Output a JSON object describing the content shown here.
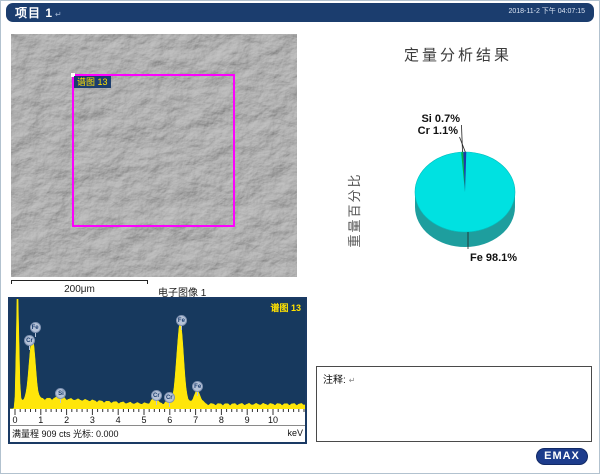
{
  "header": {
    "title": "项目 1",
    "return_mark": "↵",
    "timestamp": "2018-11-2 下午 04:07:15"
  },
  "sem": {
    "roi_label": "谱图 13",
    "scale_label": "200μm",
    "caption": "电子图像 1"
  },
  "results": {
    "title": "定量分析结果",
    "value_axis_label": "重量百分比"
  },
  "comment": {
    "label": "注释:",
    "return_mark": "↵"
  },
  "footer": {
    "logo_text": "EMAX"
  },
  "colors": {
    "header_bar": "#1b3d6e",
    "spectrum_background": "#17395e",
    "spectrum_fill": "#ffe60a",
    "roi_box": "#ff00ff",
    "roi_label_text": "#ffe100",
    "pie_fe_top": "#00e1e1",
    "pie_fe_side": "#1e9e9e",
    "pie_si": "#00b14a",
    "pie_cr": "#2038a8",
    "marker_circle": "#b6c3d8",
    "logo_background": "#1d3c8c"
  },
  "chart_data": [
    {
      "type": "pie",
      "style": "3d",
      "title": "定量分析结果",
      "value_axis_label": "重量百分比",
      "unit": "%",
      "legend_position": "callout-labels",
      "slices": [
        {
          "label": "Si",
          "value": 0.7,
          "display": "Si 0.7%",
          "color": "#00b14a"
        },
        {
          "label": "Cr",
          "value": 1.1,
          "display": "Cr 1.1%",
          "color": "#2038a8"
        },
        {
          "label": "Fe",
          "value": 98.1,
          "display": "Fe 98.1%",
          "color": "#00e1e1"
        }
      ]
    },
    {
      "type": "area",
      "title": "谱图 13",
      "xlabel": "keV",
      "xlim": [
        0,
        11.2
      ],
      "x_ticks": [
        "0",
        "1",
        "2",
        "3",
        "4",
        "5",
        "6",
        "7",
        "8",
        "9",
        "10"
      ],
      "status_left": "满量程 909 cts 光标: 0.000",
      "full_scale_cts": 909,
      "cursor_kev": "0.000",
      "grid": false,
      "zero_peak": {
        "kev": 0.1,
        "h": 1.3,
        "sigma": 0.045
      },
      "peaks": [
        {
          "element": "Fe",
          "line": "L",
          "kev": 0.71,
          "h": 0.42,
          "sigma": 0.1,
          "label_kev": 0.8,
          "label_y": 0.26
        },
        {
          "element": "Cr",
          "line": "L",
          "kev": 0.59,
          "h": 0.25,
          "sigma": 0.09,
          "label_kev": 0.58,
          "label_y": 0.38
        },
        {
          "element": "Si",
          "line": "Ka",
          "kev": 1.74,
          "h": 0.035,
          "sigma": 0.1,
          "label_kev": 1.8,
          "label_y": 0.86
        },
        {
          "element": "Cr",
          "line": "Ka",
          "kev": 5.41,
          "h": 0.05,
          "sigma": 0.11,
          "label_kev": 5.5,
          "label_y": 0.88
        },
        {
          "element": "Cr",
          "line": "Kb",
          "kev": 5.95,
          "h": 0.028,
          "sigma": 0.11,
          "label_kev": 6.0,
          "label_y": 0.9
        },
        {
          "element": "Fe",
          "line": "Ka",
          "kev": 6.4,
          "h": 0.74,
          "sigma": 0.13,
          "label_kev": 6.47,
          "label_y": 0.2
        },
        {
          "element": "Fe",
          "line": "Kb",
          "kev": 7.06,
          "h": 0.12,
          "sigma": 0.13,
          "label_kev": 7.1,
          "label_y": 0.8
        }
      ]
    }
  ]
}
